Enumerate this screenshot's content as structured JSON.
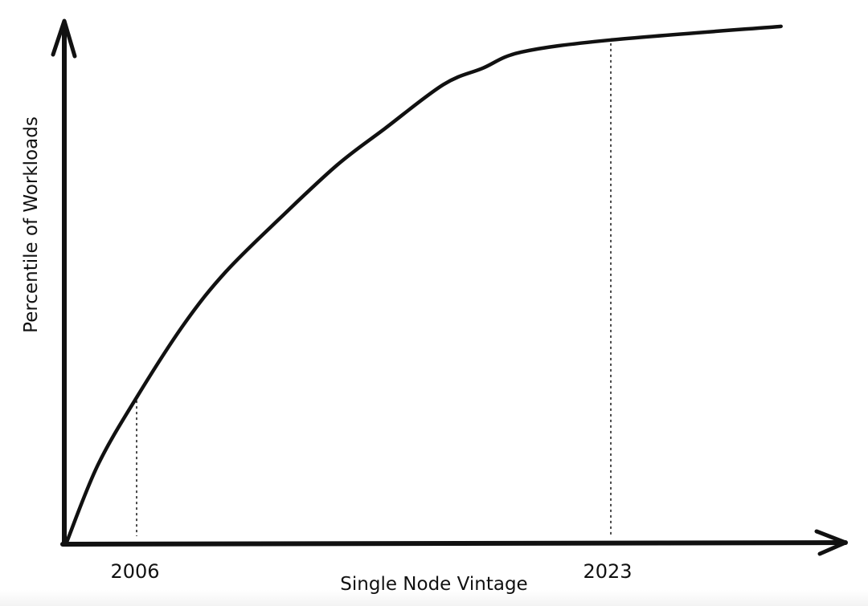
{
  "chart_data": {
    "type": "line",
    "title": "",
    "xlabel": "Single Node Vintage",
    "ylabel": "Percentile of Workloads",
    "x_tick_labels": [
      "2006",
      "2023"
    ],
    "x_ticks": [
      2006,
      2023
    ],
    "xlim": [
      2003.5,
      2031
    ],
    "ylim": [
      0,
      100
    ],
    "grid": false,
    "style": "hand-drawn",
    "line_color": "#111111",
    "reference_lines": [
      {
        "x": 2006,
        "style": "dotted"
      },
      {
        "x": 2023,
        "style": "dotted"
      }
    ],
    "series": [
      {
        "x": [
          2003.5,
          2004.6,
          2006,
          2007.7,
          2009.2,
          2011.2,
          2013.2,
          2014.9,
          2017,
          2018.4,
          2019.8,
          2023,
          2029.1
        ],
        "y": [
          0.5,
          15,
          28,
          42,
          52,
          62.5,
          72.4,
          79.3,
          87.7,
          90.8,
          93.9,
          96.2,
          98.8
        ]
      }
    ]
  }
}
